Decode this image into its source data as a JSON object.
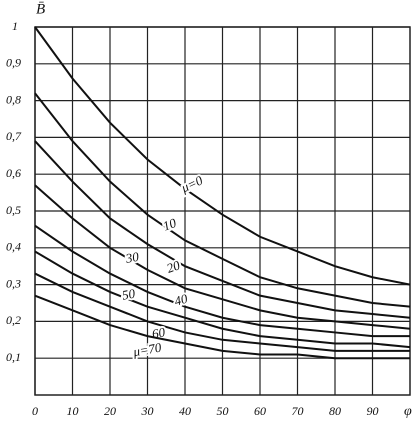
{
  "chart_data": {
    "type": "line",
    "y_label": "B̄",
    "x_label": "φ",
    "x": [
      0,
      10,
      20,
      30,
      40,
      50,
      60,
      70,
      80,
      90,
      100
    ],
    "series": [
      {
        "name": "μ=0",
        "color": "#111111",
        "values": [
          1.0,
          0.86,
          0.74,
          0.64,
          0.56,
          0.49,
          0.43,
          0.39,
          0.35,
          0.32,
          0.3
        ]
      },
      {
        "name": "10",
        "color": "#111111",
        "values": [
          0.82,
          0.69,
          0.58,
          0.49,
          0.42,
          0.37,
          0.32,
          0.29,
          0.27,
          0.25,
          0.24
        ]
      },
      {
        "name": "20",
        "color": "#111111",
        "values": [
          0.69,
          0.58,
          0.48,
          0.41,
          0.35,
          0.31,
          0.27,
          0.25,
          0.23,
          0.22,
          0.21
        ]
      },
      {
        "name": "30",
        "color": "#111111",
        "values": [
          0.57,
          0.48,
          0.4,
          0.34,
          0.29,
          0.26,
          0.23,
          0.21,
          0.2,
          0.19,
          0.18
        ]
      },
      {
        "name": "40",
        "color": "#111111",
        "values": [
          0.46,
          0.39,
          0.33,
          0.28,
          0.24,
          0.21,
          0.19,
          0.18,
          0.17,
          0.16,
          0.16
        ]
      },
      {
        "name": "50",
        "color": "#111111",
        "values": [
          0.39,
          0.33,
          0.28,
          0.24,
          0.21,
          0.18,
          0.16,
          0.15,
          0.14,
          0.14,
          0.13
        ]
      },
      {
        "name": "60",
        "color": "#111111",
        "values": [
          0.33,
          0.28,
          0.24,
          0.2,
          0.17,
          0.15,
          0.14,
          0.13,
          0.12,
          0.12,
          0.12
        ]
      },
      {
        "name": "μ=70",
        "color": "#111111",
        "values": [
          0.27,
          0.23,
          0.19,
          0.16,
          0.14,
          0.12,
          0.11,
          0.11,
          0.1,
          0.1,
          0.1
        ]
      }
    ],
    "xlim": [
      0,
      100
    ],
    "ylim": [
      0,
      1
    ],
    "xticks": [
      0,
      10,
      20,
      30,
      40,
      50,
      60,
      70,
      80,
      90
    ],
    "yticks": [
      {
        "value": 0.1,
        "label": "0,1"
      },
      {
        "value": 0.2,
        "label": "0,2"
      },
      {
        "value": 0.3,
        "label": "0,3"
      },
      {
        "value": 0.4,
        "label": "0,4"
      },
      {
        "value": 0.5,
        "label": "0,5"
      },
      {
        "value": 0.6,
        "label": "0,6"
      },
      {
        "value": 0.7,
        "label": "0,7"
      },
      {
        "value": 0.8,
        "label": "0,8"
      },
      {
        "value": 0.9,
        "label": "0,9"
      },
      1
    ],
    "grid": true
  }
}
